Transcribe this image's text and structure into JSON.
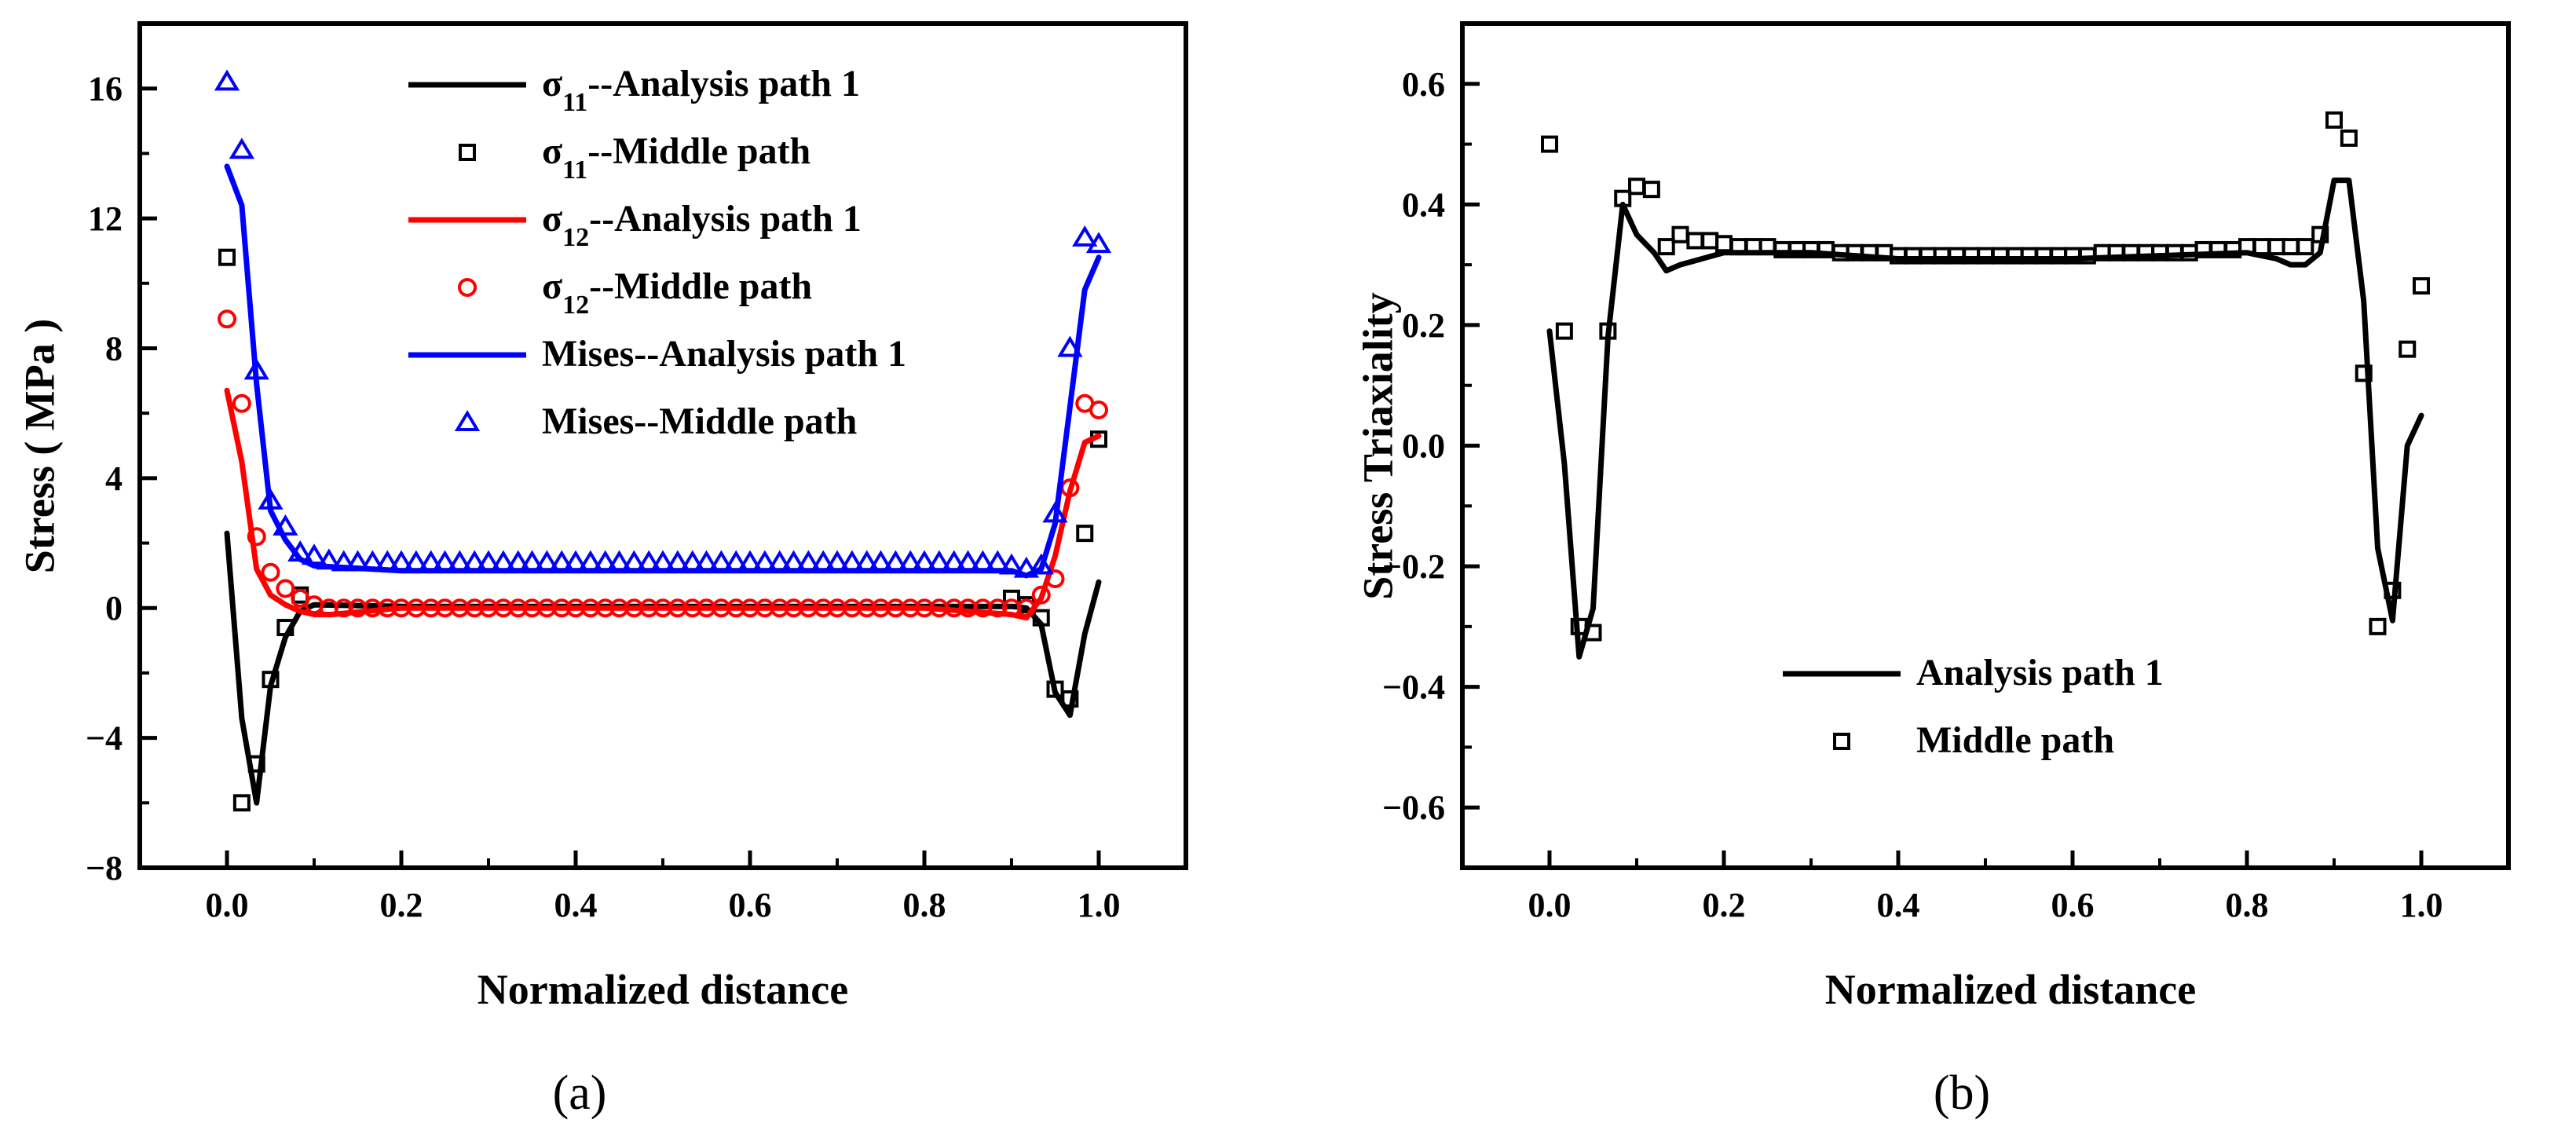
{
  "chart_data": [
    {
      "type": "line",
      "panel_label": "(a)",
      "xlabel": "Normalized distance",
      "ylabel": "Stress ( MPa )",
      "xlim": [
        -0.1,
        1.1
      ],
      "ylim": [
        -8,
        18
      ],
      "xticks": [
        0.0,
        0.2,
        0.4,
        0.6,
        0.8,
        1.0
      ],
      "xtick_labels": [
        "0.0",
        "0.2",
        "0.4",
        "0.6",
        "0.8",
        "1.0"
      ],
      "yticks": [
        -8,
        -4,
        0,
        4,
        8,
        12,
        16
      ],
      "ytick_labels": [
        "−8",
        "−4",
        "0",
        "4",
        "8",
        "12",
        "16"
      ],
      "legend_position": "top-center",
      "series": [
        {
          "name": "σ₁₁--Analysis path 1",
          "legend_main": "σ",
          "legend_sub": "11",
          "legend_rest": "--Analysis path 1",
          "kind": "line",
          "color": "#000000",
          "x": [
            0.0,
            0.017,
            0.034,
            0.05,
            0.067,
            0.084,
            0.1,
            0.2,
            0.4,
            0.6,
            0.8,
            0.9,
            0.917,
            0.934,
            0.95,
            0.967,
            0.984,
            1.0
          ],
          "y": [
            2.3,
            -3.4,
            -6.0,
            -2.4,
            -0.9,
            -0.1,
            0.1,
            0.05,
            0.05,
            0.05,
            0.05,
            0.05,
            0.0,
            -0.5,
            -2.6,
            -3.3,
            -0.8,
            0.8
          ]
        },
        {
          "name": "σ₁₁--Middle path",
          "legend_main": "σ",
          "legend_sub": "11",
          "legend_rest": "--Middle path",
          "kind": "square",
          "color": "#000000",
          "x": [
            0.0,
            0.017,
            0.034,
            0.05,
            0.067,
            0.084,
            0.9,
            0.917,
            0.934,
            0.95,
            0.967,
            0.984,
            1.0
          ],
          "y": [
            10.8,
            -6.0,
            -4.8,
            -2.2,
            -0.6,
            0.4,
            0.3,
            0.1,
            -0.3,
            -2.5,
            -2.8,
            2.3,
            5.2
          ]
        },
        {
          "name": "σ₁₂--Analysis path 1",
          "legend_main": "σ",
          "legend_sub": "12",
          "legend_rest": "--Analysis path 1",
          "kind": "line",
          "color": "#ff0000",
          "x": [
            0.0,
            0.017,
            0.034,
            0.05,
            0.067,
            0.084,
            0.1,
            0.12,
            0.2,
            0.4,
            0.6,
            0.8,
            0.9,
            0.917,
            0.934,
            0.95,
            0.967,
            0.984,
            1.0
          ],
          "y": [
            6.7,
            4.5,
            1.2,
            0.4,
            0.1,
            -0.1,
            -0.2,
            -0.2,
            0.0,
            0.0,
            0.0,
            0.0,
            -0.2,
            -0.3,
            0.3,
            1.6,
            3.6,
            5.1,
            5.3
          ]
        },
        {
          "name": "σ₁₂--Middle path",
          "legend_main": "σ",
          "legend_sub": "12",
          "legend_rest": "--Middle path",
          "kind": "circle",
          "color": "#ff0000",
          "x": [
            0.0,
            0.017,
            0.034,
            0.05,
            0.067,
            0.084,
            0.1,
            0.117,
            0.134,
            0.15,
            0.167,
            0.184,
            0.2,
            0.217,
            0.234,
            0.25,
            0.267,
            0.284,
            0.3,
            0.317,
            0.334,
            0.35,
            0.367,
            0.384,
            0.4,
            0.417,
            0.434,
            0.45,
            0.467,
            0.484,
            0.5,
            0.517,
            0.534,
            0.55,
            0.567,
            0.584,
            0.6,
            0.617,
            0.634,
            0.65,
            0.667,
            0.684,
            0.7,
            0.717,
            0.734,
            0.75,
            0.767,
            0.784,
            0.8,
            0.817,
            0.834,
            0.85,
            0.867,
            0.884,
            0.9,
            0.917,
            0.934,
            0.95,
            0.967,
            0.984,
            1.0
          ],
          "y": [
            8.9,
            6.3,
            2.2,
            1.1,
            0.6,
            0.3,
            0.1,
            0.0,
            0.0,
            0.0,
            0.0,
            0.0,
            0.0,
            0.0,
            0.0,
            0.0,
            0.0,
            0.0,
            0.0,
            0.0,
            0.0,
            0.0,
            0.0,
            0.0,
            0.0,
            0.0,
            0.0,
            0.0,
            0.0,
            0.0,
            0.0,
            0.0,
            0.0,
            0.0,
            0.0,
            0.0,
            0.0,
            0.0,
            0.0,
            0.0,
            0.0,
            0.0,
            0.0,
            0.0,
            0.0,
            0.0,
            0.0,
            0.0,
            0.0,
            0.0,
            0.0,
            0.0,
            0.0,
            0.0,
            0.0,
            0.0,
            0.4,
            0.9,
            3.7,
            6.3,
            6.1
          ]
        },
        {
          "name": "Mises--Analysis path 1",
          "legend_main": "Mises--Analysis path 1",
          "legend_sub": "",
          "legend_rest": "",
          "kind": "line",
          "color": "#0000ff",
          "x": [
            0.0,
            0.017,
            0.034,
            0.05,
            0.067,
            0.084,
            0.1,
            0.2,
            0.4,
            0.6,
            0.8,
            0.9,
            0.917,
            0.934,
            0.95,
            0.967,
            0.984,
            1.0
          ],
          "y": [
            13.6,
            12.4,
            6.9,
            3.0,
            2.1,
            1.5,
            1.3,
            1.15,
            1.15,
            1.15,
            1.15,
            1.15,
            1.0,
            1.2,
            2.6,
            6.2,
            9.8,
            10.8
          ]
        },
        {
          "name": "Mises--Middle path",
          "legend_main": "Mises--Middle path",
          "legend_sub": "",
          "legend_rest": "",
          "kind": "triangle",
          "color": "#0000ff",
          "x": [
            0.0,
            0.017,
            0.034,
            0.05,
            0.067,
            0.084,
            0.1,
            0.117,
            0.134,
            0.15,
            0.167,
            0.184,
            0.2,
            0.217,
            0.234,
            0.25,
            0.267,
            0.284,
            0.3,
            0.317,
            0.334,
            0.35,
            0.367,
            0.384,
            0.4,
            0.417,
            0.434,
            0.45,
            0.467,
            0.484,
            0.5,
            0.517,
            0.534,
            0.55,
            0.567,
            0.584,
            0.6,
            0.617,
            0.634,
            0.65,
            0.667,
            0.684,
            0.7,
            0.717,
            0.734,
            0.75,
            0.767,
            0.784,
            0.8,
            0.817,
            0.834,
            0.85,
            0.867,
            0.884,
            0.9,
            0.917,
            0.934,
            0.95,
            0.967,
            0.984,
            1.0
          ],
          "y": [
            16.2,
            14.1,
            7.3,
            3.3,
            2.5,
            1.7,
            1.6,
            1.45,
            1.4,
            1.4,
            1.4,
            1.4,
            1.4,
            1.4,
            1.4,
            1.4,
            1.4,
            1.4,
            1.4,
            1.4,
            1.4,
            1.4,
            1.4,
            1.4,
            1.4,
            1.4,
            1.4,
            1.4,
            1.4,
            1.4,
            1.4,
            1.4,
            1.4,
            1.4,
            1.4,
            1.4,
            1.4,
            1.4,
            1.4,
            1.4,
            1.4,
            1.4,
            1.4,
            1.4,
            1.4,
            1.4,
            1.4,
            1.4,
            1.4,
            1.4,
            1.4,
            1.4,
            1.4,
            1.4,
            1.3,
            1.2,
            1.3,
            2.9,
            8.0,
            11.4,
            11.2
          ]
        }
      ]
    },
    {
      "type": "line",
      "panel_label": "(b)",
      "xlabel": "Normalized distance",
      "ylabel": "Stress Triaxiality",
      "xlim": [
        -0.1,
        1.1
      ],
      "ylim": [
        -0.7,
        0.7
      ],
      "xticks": [
        0.0,
        0.2,
        0.4,
        0.6,
        0.8,
        1.0
      ],
      "xtick_labels": [
        "0.0",
        "0.2",
        "0.4",
        "0.6",
        "0.8",
        "1.0"
      ],
      "yticks": [
        -0.6,
        -0.4,
        -0.2,
        0.0,
        0.2,
        0.4,
        0.6
      ],
      "ytick_labels": [
        "−0.6",
        "−0.4",
        "−0.2",
        "0.0",
        "0.2",
        "0.4",
        "0.6"
      ],
      "legend_position": "bottom-center",
      "series": [
        {
          "name": "Analysis path 1",
          "legend_main": "Analysis path 1",
          "legend_sub": "",
          "legend_rest": "",
          "kind": "line",
          "color": "#000000",
          "x": [
            0.0,
            0.017,
            0.034,
            0.05,
            0.067,
            0.084,
            0.1,
            0.12,
            0.134,
            0.15,
            0.2,
            0.3,
            0.4,
            0.5,
            0.6,
            0.7,
            0.8,
            0.834,
            0.85,
            0.867,
            0.884,
            0.9,
            0.917,
            0.934,
            0.95,
            0.967,
            0.984,
            1.0
          ],
          "y": [
            0.19,
            -0.03,
            -0.35,
            -0.27,
            0.18,
            0.4,
            0.35,
            0.32,
            0.29,
            0.3,
            0.32,
            0.32,
            0.31,
            0.31,
            0.31,
            0.315,
            0.32,
            0.31,
            0.3,
            0.3,
            0.32,
            0.44,
            0.44,
            0.24,
            -0.17,
            -0.29,
            0.0,
            0.05
          ]
        },
        {
          "name": "Middle path",
          "legend_main": "Middle path",
          "legend_sub": "",
          "legend_rest": "",
          "kind": "square",
          "color": "#000000",
          "x": [
            0.0,
            0.017,
            0.034,
            0.05,
            0.067,
            0.084,
            0.1,
            0.117,
            0.134,
            0.15,
            0.167,
            0.184,
            0.2,
            0.217,
            0.234,
            0.25,
            0.267,
            0.284,
            0.3,
            0.317,
            0.334,
            0.35,
            0.367,
            0.384,
            0.4,
            0.417,
            0.434,
            0.45,
            0.467,
            0.484,
            0.5,
            0.517,
            0.534,
            0.55,
            0.567,
            0.584,
            0.6,
            0.617,
            0.634,
            0.65,
            0.667,
            0.684,
            0.7,
            0.717,
            0.734,
            0.75,
            0.767,
            0.784,
            0.8,
            0.817,
            0.834,
            0.85,
            0.867,
            0.884,
            0.9,
            0.917,
            0.934,
            0.95,
            0.967,
            0.984,
            1.0
          ],
          "y": [
            0.5,
            0.19,
            -0.3,
            -0.31,
            0.19,
            0.41,
            0.43,
            0.425,
            0.33,
            0.35,
            0.34,
            0.34,
            0.335,
            0.33,
            0.33,
            0.33,
            0.325,
            0.325,
            0.325,
            0.325,
            0.32,
            0.32,
            0.32,
            0.32,
            0.315,
            0.315,
            0.315,
            0.315,
            0.315,
            0.315,
            0.315,
            0.315,
            0.315,
            0.315,
            0.315,
            0.315,
            0.315,
            0.315,
            0.32,
            0.32,
            0.32,
            0.32,
            0.32,
            0.32,
            0.32,
            0.325,
            0.325,
            0.325,
            0.33,
            0.33,
            0.33,
            0.33,
            0.33,
            0.35,
            0.54,
            0.51,
            0.12,
            -0.3,
            -0.24,
            0.16,
            0.265
          ]
        }
      ]
    }
  ]
}
